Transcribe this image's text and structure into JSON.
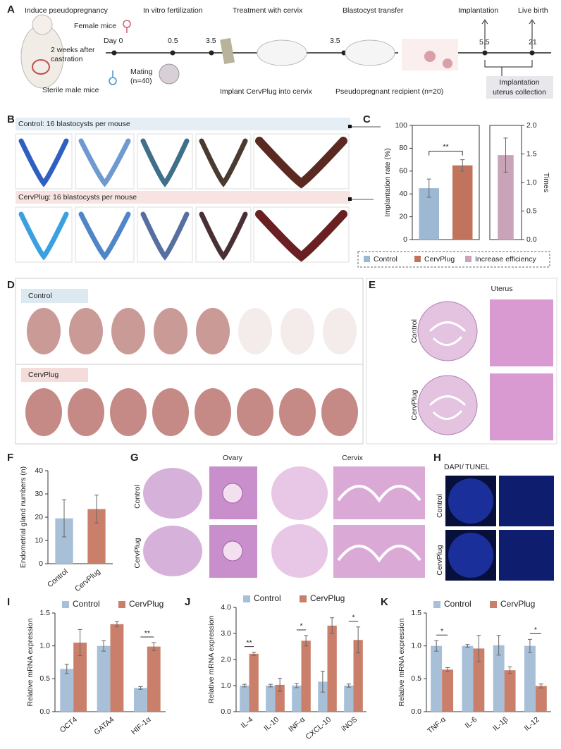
{
  "figure": {
    "panel_labels": [
      "A",
      "B",
      "C",
      "D",
      "E",
      "F",
      "G",
      "H",
      "I",
      "J",
      "K"
    ],
    "timeline": {
      "induce": "Induce pseudopregnancy",
      "female": "Female mice",
      "day0": "Day 0",
      "castration_1": "2 weeks after",
      "castration_2": "castration",
      "sterile": "Sterile male mice",
      "mating_1": "Mating",
      "mating_2": "(n=40)",
      "ivf": "In vitro fertilization",
      "t1": "0.5",
      "t2": "3.5",
      "treatment": "Treatment with cervix",
      "implant": "Implant CervPlug into cervix",
      "transfer": "Blastocyst transfer",
      "t3": "3.5",
      "recipient": "Pseudopregnant recipient (n=20)",
      "implantation": "Implantation",
      "birth": "Live birth",
      "t4": "5.5",
      "t5": "21",
      "collection_1": "Implantation",
      "collection_2": "uterus collection"
    },
    "b": {
      "control": "Control: 16 blastocysts per mouse",
      "cervplug": "CervPlug: 16 blastocysts per mouse"
    },
    "d": {
      "control": "Control",
      "cervplug": "CervPlug"
    },
    "e": {
      "title": "Uterus",
      "control": "Control",
      "cervplug": "CervPlug"
    },
    "g": {
      "ovary": "Ovary",
      "cervix": "Cervix",
      "control": "Control",
      "cervplug": "CervPlug"
    },
    "h": {
      "dapi": "DAPI",
      "slash": "/",
      "tunel": "TUNEL",
      "control": "Control",
      "cervplug": "CervPlug"
    }
  },
  "chart_data": [
    {
      "type": "bar",
      "y_label": "Implantation rate (%)",
      "y2_label": "Times",
      "annotation": "**",
      "series": [
        {
          "name": "Control",
          "color": "#9db8d2",
          "values": [
            45
          ],
          "errors": [
            8
          ]
        },
        {
          "name": "CervPlug",
          "color": "#c2735d",
          "values": [
            65
          ],
          "errors": [
            5
          ]
        },
        {
          "name": "Increase efficiency",
          "color": "#c9a3b8",
          "axis": "y2",
          "values": [
            1.48
          ],
          "errors": [
            0.3
          ]
        }
      ],
      "ylim": [
        0,
        100
      ],
      "yticks": [
        0,
        20,
        40,
        60,
        80,
        100
      ],
      "y2lim": [
        0,
        2
      ],
      "y2ticks": [
        {
          "value": 0,
          "label": "0.0"
        },
        {
          "value": 0.5,
          "label": "0.5"
        },
        {
          "value": 1,
          "label": "1.0"
        },
        {
          "value": 1.5,
          "label": "1.5"
        },
        {
          "value": 2,
          "label": "2.0"
        }
      ]
    },
    {
      "type": "bar",
      "y_label": "Endometrial gland numbers (n)",
      "categories": [
        "Control",
        "CervPlug"
      ],
      "values": [
        19.5,
        23.5
      ],
      "errors": [
        8,
        6
      ],
      "colors": [
        "#a7c0d8",
        "#c97f6a"
      ],
      "ylim": [
        0,
        40
      ],
      "yticks": [
        0,
        10,
        20,
        30,
        40
      ]
    },
    {
      "type": "bar",
      "y_label": "Relative mRNA expression",
      "categories": [
        "OCT4",
        "GATA4",
        "HIF-1α"
      ],
      "series": [
        {
          "name": "Control",
          "color": "#a7c0d8",
          "values": [
            0.65,
            1.0,
            0.36
          ],
          "errors": [
            0.07,
            0.08,
            0.02
          ]
        },
        {
          "name": "CervPlug",
          "color": "#c97f6a",
          "values": [
            1.05,
            1.33,
            0.99
          ],
          "errors": [
            0.2,
            0.04,
            0.06
          ]
        }
      ],
      "significance": [
        null,
        null,
        "**"
      ],
      "ylim": [
        0,
        1.5
      ],
      "yticks": [
        {
          "value": 0,
          "label": "0.0"
        },
        {
          "value": 0.5,
          "label": "0.5"
        },
        {
          "value": 1,
          "label": "1.0"
        },
        {
          "value": 1.5,
          "label": "1.5"
        }
      ]
    },
    {
      "type": "bar",
      "y_label": "Relative mRNA expression",
      "categories": [
        "IL-4",
        "IL-10",
        "INF-α",
        "CXCL-10",
        "iNOS"
      ],
      "series": [
        {
          "name": "Control",
          "color": "#a7c0d8",
          "values": [
            1.0,
            1.0,
            1.0,
            1.15,
            1.0
          ],
          "errors": [
            0.05,
            0.05,
            0.08,
            0.4,
            0.06
          ]
        },
        {
          "name": "CervPlug",
          "color": "#c97f6a",
          "values": [
            2.22,
            1.03,
            2.72,
            3.3,
            2.75
          ],
          "errors": [
            0.06,
            0.25,
            0.2,
            0.3,
            0.5
          ]
        }
      ],
      "significance": [
        "**",
        null,
        "*",
        null,
        "*"
      ],
      "ylim": [
        0,
        4
      ],
      "yticks": [
        {
          "value": 0,
          "label": "0.0"
        },
        {
          "value": 1,
          "label": "1.0"
        },
        {
          "value": 2,
          "label": "2.0"
        },
        {
          "value": 3,
          "label": "3.0"
        },
        {
          "value": 4,
          "label": "4.0"
        }
      ]
    },
    {
      "type": "bar",
      "y_label": "Relative mRNA expression",
      "categories": [
        "TNF-α",
        "IL-6",
        "IL-1β",
        "IL-12"
      ],
      "series": [
        {
          "name": "Control",
          "color": "#a7c0d8",
          "values": [
            1.0,
            1.0,
            1.01,
            1.0
          ],
          "errors": [
            0.08,
            0.02,
            0.15,
            0.1
          ]
        },
        {
          "name": "CervPlug",
          "color": "#c97f6a",
          "values": [
            0.64,
            0.96,
            0.63,
            0.39
          ],
          "errors": [
            0.03,
            0.2,
            0.05,
            0.03
          ]
        }
      ],
      "significance": [
        "*",
        null,
        null,
        "*"
      ],
      "ylim": [
        0,
        1.5
      ],
      "yticks": [
        {
          "value": 0,
          "label": "0.0"
        },
        {
          "value": 0.5,
          "label": "0.5"
        },
        {
          "value": 1,
          "label": "1.0"
        },
        {
          "value": 1.5,
          "label": "1.5"
        }
      ]
    }
  ]
}
